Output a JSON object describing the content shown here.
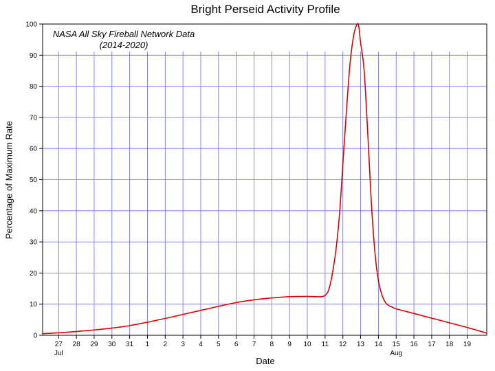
{
  "chart_data": {
    "type": "line",
    "title": "Bright Perseid Activity Profile",
    "annotation": [
      "NASA All Sky Fireball Network Data",
      "(2014-2020)"
    ],
    "xlabel": "Date",
    "ylabel": "Percentage of Maximum Rate",
    "x_ticks": [
      "27",
      "28",
      "29",
      "30",
      "31",
      "1",
      "2",
      "3",
      "4",
      "5",
      "6",
      "7",
      "8",
      "9",
      "10",
      "11",
      "12",
      "13",
      "14",
      "15",
      "16",
      "17",
      "18",
      "19"
    ],
    "x_month_labels": [
      {
        "at_tick": "27",
        "label": "Jul"
      },
      {
        "at_tick": "15",
        "label": "Aug"
      }
    ],
    "xlim": [
      "Jul 26.1",
      "Aug 20.1"
    ],
    "ylim": [
      0,
      100
    ],
    "y_ticks": [
      0,
      10,
      20,
      30,
      40,
      50,
      60,
      70,
      80,
      90,
      100
    ],
    "grid": true,
    "line_color": "#dd0000",
    "grid_color": "#6666ff",
    "series": [
      {
        "x": [
          "Jul 26.1",
          "Jul 27",
          "Jul 28",
          "Jul 29",
          "Jul 30",
          "Jul 31",
          "Aug 1",
          "Aug 2",
          "Aug 3",
          "Aug 4",
          "Aug 5",
          "Aug 6",
          "Aug 7",
          "Aug 8",
          "Aug 9",
          "Aug 10",
          "Aug 10.5",
          "Aug 10.8",
          "Aug 11",
          "Aug 11.2",
          "Aug 11.4",
          "Aug 11.6",
          "Aug 11.8",
          "Aug 12",
          "Aug 12.2",
          "Aug 12.4",
          "Aug 12.6",
          "Aug 12.8",
          "Aug 12.9",
          "Aug 13",
          "Aug 13.2",
          "Aug 13.4",
          "Aug 13.6",
          "Aug 13.8",
          "Aug 14",
          "Aug 14.2",
          "Aug 14.4",
          "Aug 14.6",
          "Aug 14.8",
          "Aug 15",
          "Aug 16",
          "Aug 17",
          "Aug 18",
          "Aug 19",
          "Aug 20.1"
        ],
        "values": [
          0.5,
          0.8,
          1.2,
          1.7,
          2.3,
          3.1,
          4.2,
          5.4,
          6.7,
          8.0,
          9.3,
          10.5,
          11.4,
          12.0,
          12.4,
          12.5,
          12.4,
          12.4,
          12.8,
          14.5,
          19.5,
          27.0,
          38.0,
          55.0,
          72.0,
          87.0,
          96.0,
          100.0,
          99.0,
          94.0,
          85.0,
          65.0,
          43.0,
          27.0,
          17.5,
          13.0,
          10.5,
          9.5,
          9.0,
          8.5,
          7.0,
          5.5,
          4.0,
          2.5,
          0.7
        ]
      }
    ]
  }
}
